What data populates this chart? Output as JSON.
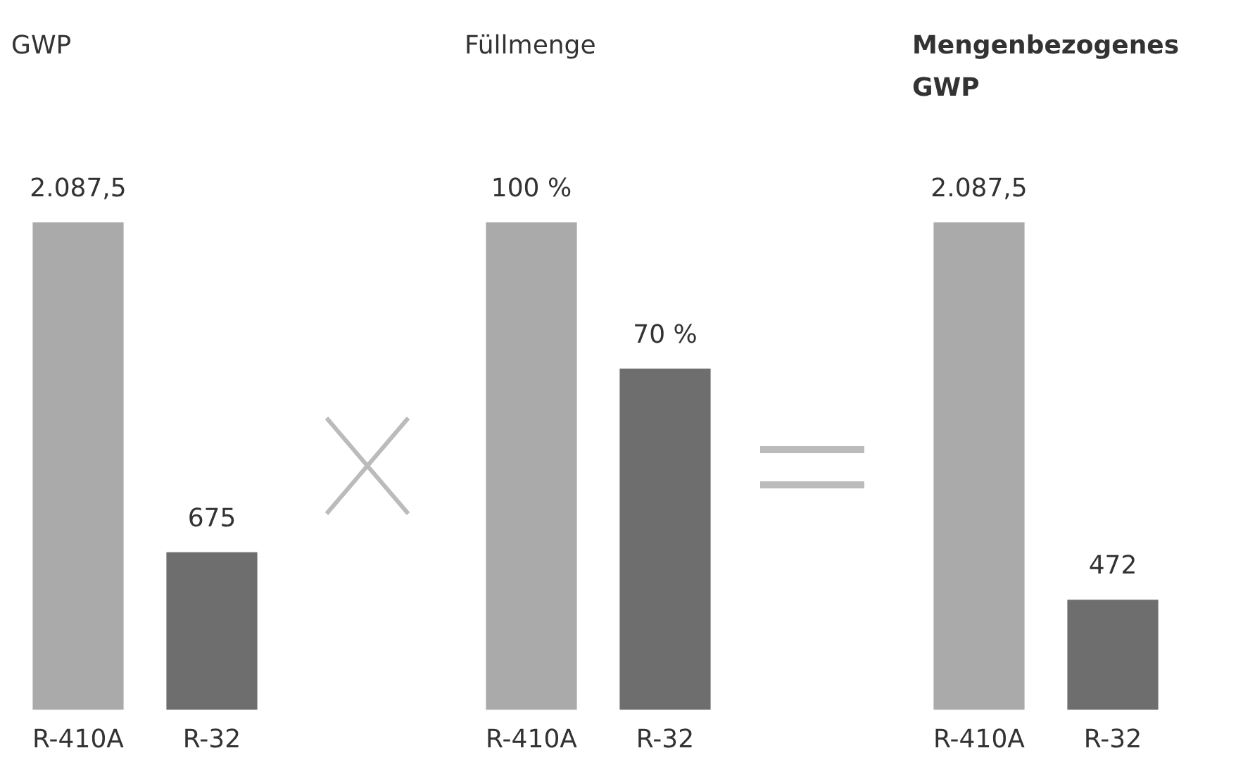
{
  "chart_data": [
    {
      "type": "bar",
      "title": "GWP",
      "categories": [
        "R-410A",
        "R-32"
      ],
      "values": [
        2087.5,
        675
      ],
      "colors": [
        "#aaaaaa",
        "#6e6e6e"
      ],
      "value_labels": [
        "2.087,5",
        "675"
      ]
    },
    {
      "type": "bar",
      "title": "Füllmenge",
      "categories": [
        "R-410A",
        "R-32"
      ],
      "values": [
        100,
        70
      ],
      "colors": [
        "#aaaaaa",
        "#6e6e6e"
      ],
      "value_labels": [
        "100 %",
        "70 %"
      ]
    },
    {
      "type": "bar",
      "title": "Mengenbezogenes GWP",
      "categories": [
        "R-410A",
        "R-32"
      ],
      "values": [
        2087.5,
        472
      ],
      "colors": [
        "#aaaaaa",
        "#6e6e6e"
      ],
      "value_labels": [
        "2.087,5",
        "472"
      ]
    }
  ]
}
